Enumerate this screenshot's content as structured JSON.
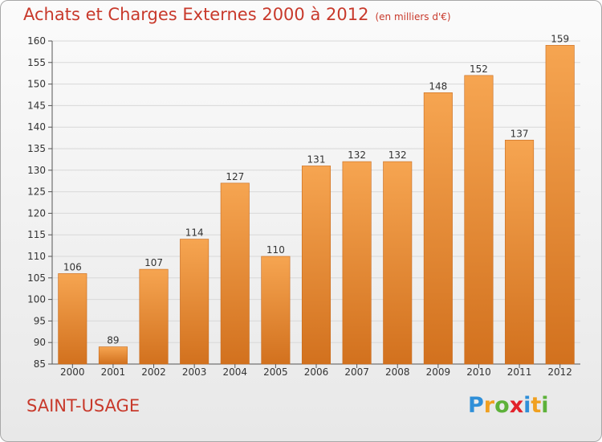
{
  "header": {
    "title": "Achats et Charges Externes 2000 à 2012",
    "units": "(en milliers d'€)"
  },
  "footer": {
    "commune": "SAINT-USAGE",
    "logo_letters": [
      {
        "ch": "P",
        "color": "#2f8fd8"
      },
      {
        "ch": "r",
        "color": "#f0a020"
      },
      {
        "ch": "o",
        "color": "#5db13a"
      },
      {
        "ch": "x",
        "color": "#e2222a"
      },
      {
        "ch": "i",
        "color": "#2f8fd8"
      },
      {
        "ch": "t",
        "color": "#f0a020"
      },
      {
        "ch": "i",
        "color": "#5db13a"
      }
    ]
  },
  "colors": {
    "bar_light": "#f6a551",
    "bar_dark": "#d2711e",
    "title": "#c8392b",
    "grid": "#d8d8d8"
  },
  "chart_data": {
    "type": "bar",
    "title": "Achats et Charges Externes 2000 à 2012",
    "subtitle": "(en milliers d'€)",
    "xlabel": "",
    "ylabel": "",
    "categories": [
      "2000",
      "2001",
      "2002",
      "2003",
      "2004",
      "2005",
      "2006",
      "2007",
      "2008",
      "2009",
      "2010",
      "2011",
      "2012"
    ],
    "values": [
      106,
      89,
      107,
      114,
      127,
      110,
      131,
      132,
      132,
      148,
      152,
      137,
      159
    ],
    "ylim": [
      85,
      160
    ],
    "yticks": [
      85,
      90,
      95,
      100,
      105,
      110,
      115,
      120,
      125,
      130,
      135,
      140,
      145,
      150,
      155,
      160
    ],
    "grid": true,
    "legend": "none"
  }
}
